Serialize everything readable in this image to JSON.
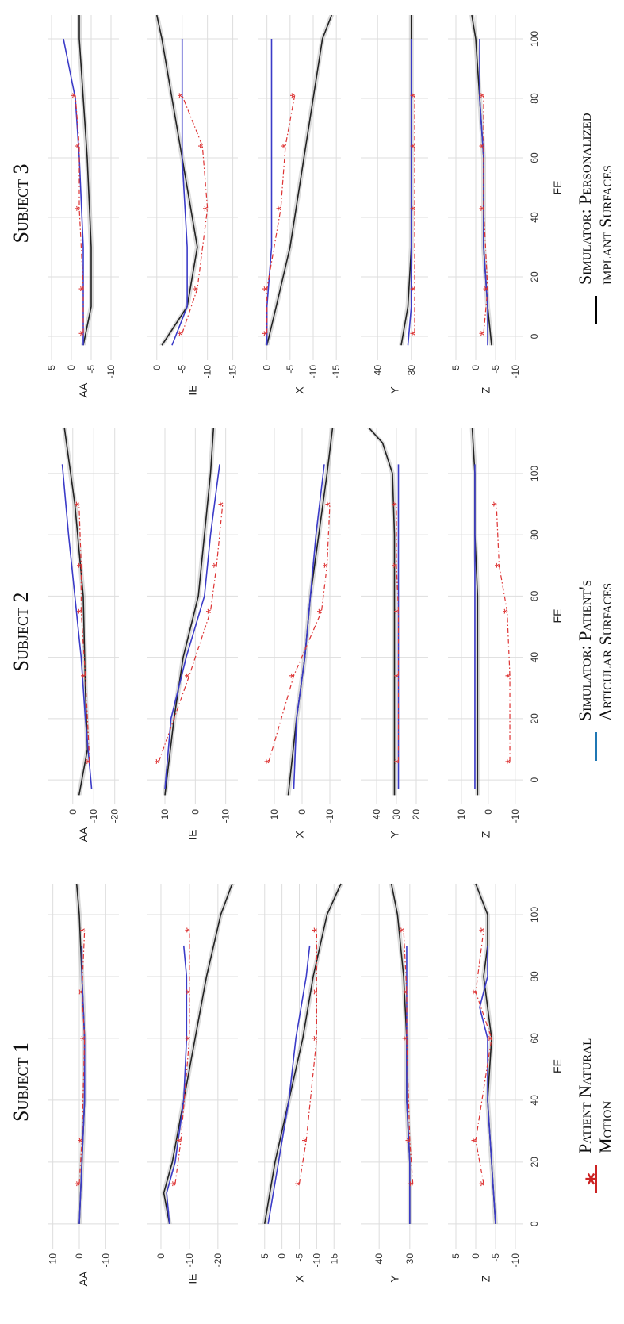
{
  "subjects": [
    {
      "title": "Subject 1",
      "xlabel": "FE",
      "xlim": [
        -8,
        110
      ],
      "xticks": [
        0,
        20,
        40,
        60,
        80,
        100
      ],
      "panels": [
        {
          "ylabel": "AA",
          "ylim": [
            -15,
            12
          ],
          "yticks": [
            10,
            0,
            -10
          ],
          "patient": {
            "x": [
              13,
              27,
              60,
              75,
              95
            ],
            "y": [
              0,
              -1,
              -2,
              -1,
              -2
            ]
          },
          "blue": {
            "x": [
              0,
              20,
              40,
              60,
              80,
              90
            ],
            "y": [
              0,
              -1,
              -2,
              -2,
              -1,
              -1
            ]
          },
          "black": {
            "x": [
              0,
              20,
              40,
              60,
              80,
              100,
              110
            ],
            "y": [
              0,
              -1,
              -2,
              -2,
              -1,
              0,
              1
            ]
          }
        },
        {
          "ylabel": "IE",
          "ylim": [
            -27,
            5
          ],
          "yticks": [
            0,
            -10,
            -20
          ],
          "patient": {
            "x": [
              13,
              27,
              60,
              75,
              95
            ],
            "y": [
              -5,
              -7,
              -10,
              -10,
              -10
            ]
          },
          "blue": {
            "x": [
              0,
              10,
              20,
              40,
              60,
              80,
              90
            ],
            "y": [
              -3,
              -2,
              -5,
              -8,
              -9,
              -9,
              -8
            ]
          },
          "black": {
            "x": [
              0,
              10,
              20,
              40,
              60,
              80,
              100,
              110
            ],
            "y": [
              -3,
              -1,
              -4,
              -8,
              -12,
              -16,
              -21,
              -25
            ]
          }
        },
        {
          "ylabel": "X",
          "ylim": [
            -17,
            7
          ],
          "yticks": [
            5,
            0,
            -5,
            -10,
            -15
          ],
          "patient": {
            "x": [
              13,
              27,
              60,
              75,
              95
            ],
            "y": [
              -5,
              -7,
              -10,
              -10,
              -10
            ]
          },
          "blue": {
            "x": [
              0,
              20,
              40,
              60,
              80,
              90
            ],
            "y": [
              4,
              1,
              -2,
              -4,
              -7,
              -8
            ]
          },
          "black": {
            "x": [
              0,
              20,
              40,
              60,
              80,
              100,
              110
            ],
            "y": [
              5,
              2,
              -2,
              -6,
              -9,
              -13,
              -17
            ]
          }
        },
        {
          "ylabel": "Y",
          "ylim": [
            24,
            46
          ],
          "yticks": [
            40,
            30
          ],
          "patient": {
            "x": [
              13,
              27,
              60,
              75,
              95
            ],
            "y": [
              29,
              30,
              31,
              31,
              32
            ]
          },
          "blue": {
            "x": [
              0,
              20,
              40,
              60,
              80,
              90
            ],
            "y": [
              30,
              30,
              31,
              31,
              31,
              31
            ]
          },
          "black": {
            "x": [
              0,
              20,
              40,
              60,
              80,
              100,
              110
            ],
            "y": [
              30,
              30,
              31,
              31,
              32,
              34,
              36
            ]
          }
        },
        {
          "ylabel": "Z",
          "ylim": [
            -12,
            7
          ],
          "yticks": [
            5,
            0,
            -5,
            -10
          ],
          "patient": {
            "x": [
              13,
              27,
              60,
              75,
              95
            ],
            "y": [
              -2,
              0,
              -4,
              0,
              -2
            ]
          },
          "blue": {
            "x": [
              0,
              20,
              40,
              60,
              70,
              80,
              90
            ],
            "y": [
              -5,
              -4,
              -3,
              -3,
              -1,
              -3,
              -3
            ]
          },
          "black": {
            "x": [
              0,
              20,
              40,
              60,
              70,
              80,
              90,
              100,
              110
            ],
            "y": [
              -5,
              -4,
              -3,
              -4,
              -3,
              -2,
              -3,
              -3,
              0
            ]
          }
        }
      ]
    },
    {
      "title": "Subject 2",
      "xlabel": "FE",
      "xlim": [
        -8,
        115
      ],
      "xticks": [
        0,
        20,
        40,
        60,
        80,
        100
      ],
      "panels": [
        {
          "ylabel": "AA",
          "ylim": [
            -22,
            12
          ],
          "yticks": [
            0,
            -10,
            -20
          ],
          "patient": {
            "x": [
              6,
              34,
              55,
              70,
              90
            ],
            "y": [
              -8,
              -6,
              -4,
              -4,
              -3
            ]
          },
          "blue": {
            "x": [
              -3,
              20,
              40,
              60,
              80,
              103
            ],
            "y": [
              -9,
              -6,
              -4,
              -1,
              2,
              5
            ]
          },
          "black": {
            "x": [
              -5,
              10,
              30,
              60,
              90,
              115
            ],
            "y": [
              -3,
              -7,
              -6,
              -5,
              -1,
              4
            ]
          }
        },
        {
          "ylabel": "IE",
          "ylim": [
            -14,
            16
          ],
          "yticks": [
            10,
            0,
            -10
          ],
          "patient": {
            "x": [
              6,
              34,
              55,
              70,
              90
            ],
            "y": [
              12,
              2,
              -5,
              -7,
              -9
            ]
          },
          "blue": {
            "x": [
              -3,
              20,
              40,
              60,
              80,
              103
            ],
            "y": [
              10,
              8,
              3,
              -3,
              -5,
              -8
            ]
          },
          "black": {
            "x": [
              -5,
              20,
              40,
              60,
              80,
              100,
              115
            ],
            "y": [
              10,
              7,
              4,
              -1,
              -3,
              -5,
              -6
            ]
          }
        },
        {
          "ylabel": "X",
          "ylim": [
            -14,
            16
          ],
          "yticks": [
            10,
            0,
            -10
          ],
          "patient": {
            "x": [
              6,
              34,
              55,
              70,
              90
            ],
            "y": [
              12,
              3,
              -7,
              -9,
              -10
            ]
          },
          "blue": {
            "x": [
              -3,
              20,
              40,
              60,
              80,
              103
            ],
            "y": [
              3,
              2,
              -1,
              -3,
              -5,
              -8
            ]
          },
          "black": {
            "x": [
              -5,
              20,
              40,
              60,
              80,
              100,
              115
            ],
            "y": [
              5,
              2,
              -1,
              -3,
              -6,
              -9,
              -11
            ]
          }
        },
        {
          "ylabel": "Y",
          "ylim": [
            14,
            48
          ],
          "yticks": [
            40,
            30,
            20
          ],
          "patient": {
            "x": [
              6,
              34,
              55,
              70,
              90
            ],
            "y": [
              29,
              29,
              29,
              30,
              30
            ]
          },
          "blue": {
            "x": [
              -3,
              20,
              40,
              60,
              80,
              103
            ],
            "y": [
              29,
              29,
              29,
              29,
              29,
              29
            ]
          },
          "black": {
            "x": [
              -5,
              20,
              40,
              60,
              80,
              100,
              110,
              115
            ],
            "y": [
              31,
              31,
              31,
              31,
              31,
              32,
              37,
              44
            ]
          }
        },
        {
          "ylabel": "Z",
          "ylim": [
            -13,
            15
          ],
          "yticks": [
            10,
            0,
            -10
          ],
          "patient": {
            "x": [
              6,
              34,
              55,
              70,
              90
            ],
            "y": [
              -8,
              -8,
              -7,
              -4,
              -3
            ]
          },
          "blue": {
            "x": [
              -3,
              20,
              40,
              60,
              80,
              103
            ],
            "y": [
              5,
              5,
              5,
              5,
              5,
              5
            ]
          },
          "black": {
            "x": [
              -5,
              20,
              40,
              60,
              80,
              100,
              115
            ],
            "y": [
              4,
              4,
              4,
              4,
              5,
              5,
              6
            ]
          }
        }
      ]
    },
    {
      "title": "Subject 3",
      "xlabel": "FE",
      "xlim": [
        -8,
        108
      ],
      "xticks": [
        0,
        20,
        40,
        60,
        80,
        100
      ],
      "panels": [
        {
          "ylabel": "AA",
          "ylim": [
            -12,
            6
          ],
          "yticks": [
            5,
            0,
            -5,
            -10
          ],
          "patient": {
            "x": [
              1,
              16,
              43,
              64,
              81
            ],
            "y": [
              -3,
              -3,
              -2,
              -2,
              -1
            ]
          },
          "blue": {
            "x": [
              -3,
              10,
              30,
              60,
              80,
              100
            ],
            "y": [
              -3,
              -3,
              -3,
              -2,
              -1,
              2
            ]
          },
          "black": {
            "x": [
              -3,
              10,
              30,
              60,
              80,
              100,
              108
            ],
            "y": [
              -3,
              -5,
              -5,
              -4,
              -3,
              -2,
              -2
            ]
          }
        },
        {
          "ylabel": "IE",
          "ylim": [
            -16,
            2
          ],
          "yticks": [
            0,
            -5,
            -10,
            -15
          ],
          "patient": {
            "x": [
              1,
              16,
              43,
              64,
              81
            ],
            "y": [
              -5,
              -8,
              -10,
              -9,
              -5
            ]
          },
          "blue": {
            "x": [
              -3,
              10,
              30,
              60,
              80,
              100
            ],
            "y": [
              -3,
              -6,
              -6,
              -5,
              -5,
              -5
            ]
          },
          "black": {
            "x": [
              -3,
              10,
              30,
              60,
              80,
              100,
              108
            ],
            "y": [
              -1,
              -6,
              -8,
              -5,
              -3,
              -1,
              0
            ]
          }
        },
        {
          "ylabel": "X",
          "ylim": [
            -16,
            2
          ],
          "yticks": [
            0,
            -5,
            -10,
            -15
          ],
          "patient": {
            "x": [
              1,
              16,
              43,
              64,
              81
            ],
            "y": [
              0,
              0,
              -3,
              -4,
              -6
            ]
          },
          "blue": {
            "x": [
              -3,
              10,
              30,
              60,
              80,
              100
            ],
            "y": [
              0,
              0,
              -1,
              -1,
              -1,
              -1
            ]
          },
          "black": {
            "x": [
              -3,
              10,
              30,
              60,
              80,
              100,
              108
            ],
            "y": [
              0,
              -2,
              -5,
              -8,
              -10,
              -12,
              -14
            ]
          }
        },
        {
          "ylabel": "Y",
          "ylim": [
            25,
            45
          ],
          "yticks": [
            40,
            30
          ],
          "patient": {
            "x": [
              1,
              16,
              43,
              64,
              81
            ],
            "y": [
              29,
              29,
              29,
              29,
              29
            ]
          },
          "blue": {
            "x": [
              -3,
              10,
              30,
              60,
              80,
              100
            ],
            "y": [
              31,
              30,
              30,
              30,
              30,
              30
            ]
          },
          "black": {
            "x": [
              -3,
              10,
              30,
              60,
              80,
              100,
              108
            ],
            "y": [
              33,
              31,
              30,
              30,
              30,
              30,
              30
            ]
          }
        },
        {
          "ylabel": "Z",
          "ylim": [
            -12,
            7
          ],
          "yticks": [
            5,
            0,
            -5,
            -10
          ],
          "patient": {
            "x": [
              1,
              16,
              43,
              64,
              81
            ],
            "y": [
              -2,
              -3,
              -2,
              -2,
              -2
            ]
          },
          "blue": {
            "x": [
              -3,
              10,
              30,
              60,
              80,
              100
            ],
            "y": [
              -3,
              -3,
              -2,
              -2,
              -1,
              -1
            ]
          },
          "black": {
            "x": [
              -3,
              10,
              30,
              60,
              80,
              100,
              108
            ],
            "y": [
              -4,
              -3,
              -2,
              -2,
              -1,
              0,
              1
            ]
          }
        }
      ]
    }
  ],
  "legend": [
    {
      "label_lines": [
        "Patient Natural",
        "Motion"
      ],
      "marker": "*",
      "color": "#cc2222"
    },
    {
      "label_lines": [
        "Simulator: Patient's",
        "Articular Surfaces"
      ],
      "color": "#1f77b4"
    },
    {
      "label_lines": [
        "Simulator: Personalized",
        "implant Surfaces"
      ],
      "color": "#000000"
    }
  ],
  "colors": {
    "patient": "#dd3333",
    "blue": "#3b3bc8",
    "black": "#222222",
    "grid": "#dddddd",
    "band": "#9a9a9a"
  },
  "chart_data": {
    "type": "line",
    "note_x": "FE",
    "series_names": [
      "Patient Natural Motion",
      "Simulator: Patient's Articular Surfaces",
      "Simulator: Personalized implant Surfaces"
    ]
  }
}
